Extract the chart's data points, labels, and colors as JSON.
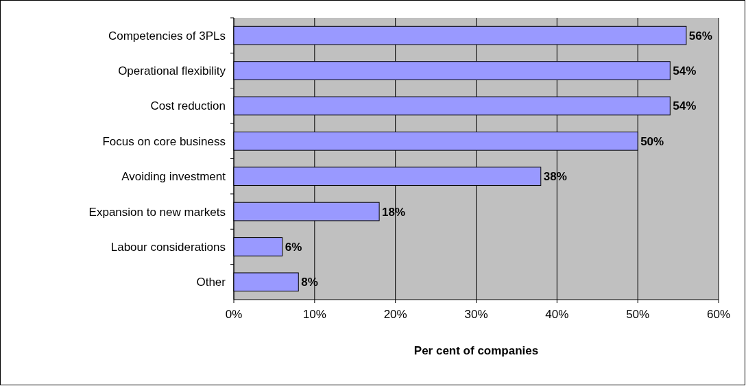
{
  "chart_data": {
    "type": "bar",
    "orientation": "horizontal",
    "xlabel": "Per cent of companies",
    "categories": [
      "Competencies of 3PLs",
      "Operational flexibility",
      "Cost reduction",
      "Focus on core business",
      "Avoiding investment",
      "Expansion to new markets",
      "Labour considerations",
      "Other"
    ],
    "values": [
      56,
      54,
      54,
      50,
      38,
      18,
      6,
      8
    ],
    "value_labels": [
      "56%",
      "54%",
      "54%",
      "50%",
      "38%",
      "18%",
      "6%",
      "8%"
    ],
    "color": "#9999ff",
    "xlim": [
      0,
      60
    ],
    "xticks": [
      {
        "value": 0,
        "label": "0%"
      },
      {
        "value": 10,
        "label": "10%"
      },
      {
        "value": 20,
        "label": "20%"
      },
      {
        "value": 30,
        "label": "30%"
      },
      {
        "value": 40,
        "label": "40%"
      },
      {
        "value": 50,
        "label": "50%"
      },
      {
        "value": 60,
        "label": "60%"
      }
    ],
    "grid": "x"
  }
}
